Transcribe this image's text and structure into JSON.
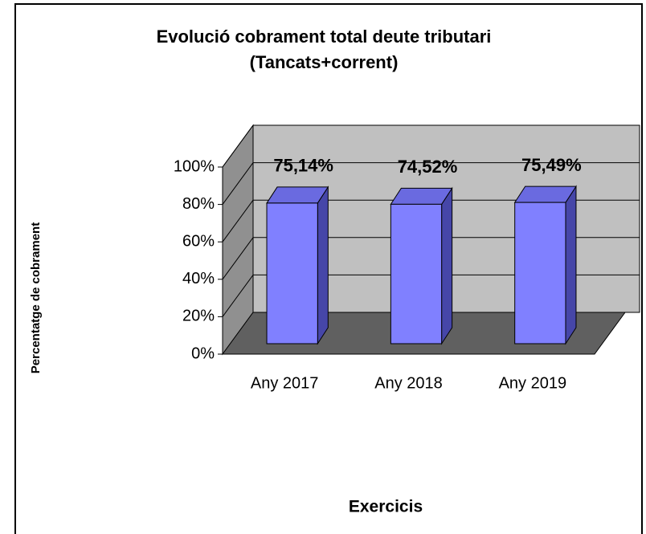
{
  "chart_data": {
    "type": "bar3d",
    "title": "Evolució cobrament total deute tributari",
    "subtitle": "(Tancats+corrent)",
    "y_label": "Percentatge de cobrament",
    "x_label": "Exercicis",
    "categories": [
      "Any 2017",
      "Any 2018",
      "Any 2019"
    ],
    "values": [
      75.14,
      74.52,
      75.49
    ],
    "value_labels": [
      "75,14%",
      "74,52%",
      "75,49%"
    ],
    "color": "#8080ff",
    "ylim": [
      0,
      100
    ],
    "yticks": [
      {
        "value": 0,
        "label": "0%"
      },
      {
        "value": 20,
        "label": "20%"
      },
      {
        "value": 40,
        "label": "40%"
      },
      {
        "value": 60,
        "label": "60%"
      },
      {
        "value": 80,
        "label": "80%"
      },
      {
        "value": 100,
        "label": "100%"
      }
    ],
    "grid": true
  }
}
